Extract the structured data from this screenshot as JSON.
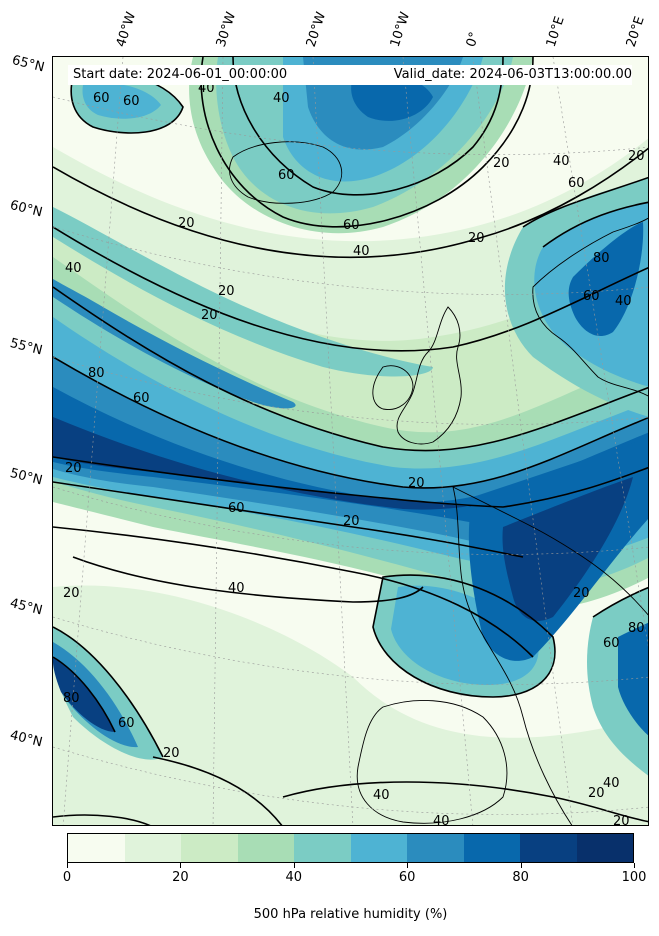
{
  "header": {
    "start_date": "Start date: 2024-06-01_00:00:00",
    "valid_date": "Valid_date: 2024-06-03T13:00:00.00"
  },
  "graticule": {
    "latitudes": [
      "65°N",
      "60°N",
      "55°N",
      "50°N",
      "45°N",
      "40°N"
    ],
    "longitudes": [
      "40°W",
      "30°W",
      "20°W",
      "10°W",
      "0°",
      "10°E",
      "20°E"
    ]
  },
  "contour_labels": [
    "60",
    "40",
    "60",
    "40",
    "20",
    "60",
    "20",
    "60",
    "40",
    "20",
    "20",
    "20",
    "80",
    "60",
    "20",
    "60",
    "40",
    "80",
    "60",
    "40",
    "20",
    "60",
    "40",
    "20",
    "20",
    "40",
    "80",
    "20",
    "20",
    "60",
    "80",
    "60",
    "20",
    "40",
    "40",
    "20",
    "40",
    "20"
  ],
  "colorbar": {
    "title": "500 hPa relative humidity (%)",
    "ticks": [
      "0",
      "20",
      "40",
      "60",
      "80",
      "100"
    ],
    "colors": [
      "#f7fcf0",
      "#e0f3db",
      "#ccebc5",
      "#a8ddb5",
      "#7bccc4",
      "#4eb3d3",
      "#2b8cbe",
      "#0868ac",
      "#084081",
      "#08306b"
    ]
  },
  "palette": {
    "rh_0_10": "#f7fcf0",
    "rh_10_20": "#e0f3db",
    "rh_20_30": "#ccebc5",
    "rh_30_40": "#a8ddb5",
    "rh_40_50": "#7bccc4",
    "rh_50_60": "#4eb3d3",
    "rh_60_70": "#2b8cbe",
    "rh_70_80": "#0868ac",
    "rh_80_90": "#084081"
  }
}
